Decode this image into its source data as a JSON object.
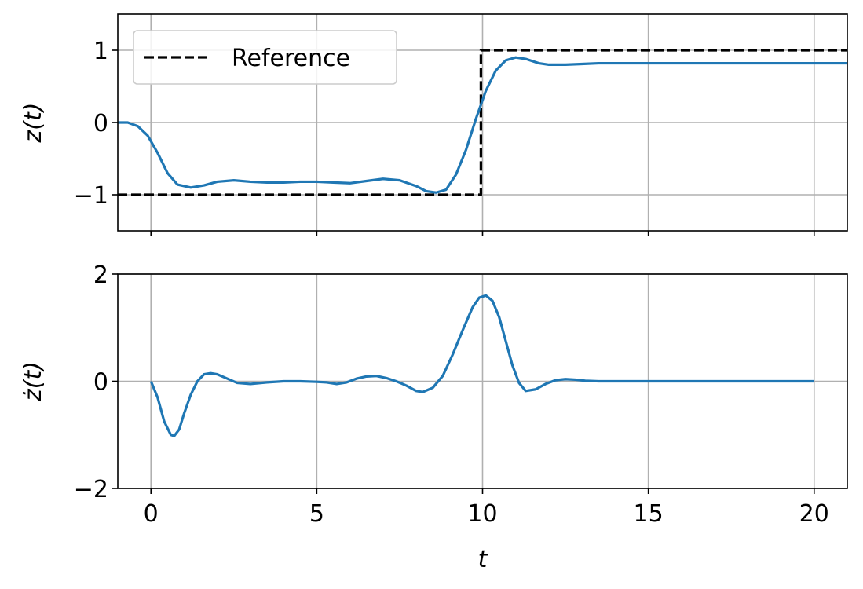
{
  "colors": {
    "series": "#1f77b4",
    "reference": "#000000",
    "grid": "#b0b0b0",
    "axis": "#000000",
    "legend_border": "#cccccc"
  },
  "chart_data": [
    {
      "type": "line",
      "xlim": [
        -1,
        21
      ],
      "ylim": [
        -1.5,
        1.5
      ],
      "yticks": [
        -1,
        0,
        1
      ],
      "ytick_labels": [
        "−1",
        "0",
        "1"
      ],
      "xticks": [
        0,
        5,
        10,
        15,
        20
      ],
      "show_xtick_labels": false,
      "ylabel": "z(t)",
      "xlabel": "",
      "grid": true,
      "legend": {
        "placement": "top-left",
        "entries": [
          "Reference"
        ]
      },
      "series": [
        {
          "name": "Reference",
          "style": "dashed",
          "color": "#000000",
          "x": [
            -1,
            9.95,
            9.95,
            21
          ],
          "y": [
            -1,
            -1,
            1,
            1
          ]
        },
        {
          "style": "solid",
          "color": "#1f77b4",
          "x": [
            -1,
            -0.7,
            -0.4,
            -0.1,
            0.2,
            0.5,
            0.8,
            1.2,
            1.6,
            2.0,
            2.5,
            3.0,
            3.5,
            4.0,
            4.5,
            5.0,
            5.5,
            6.0,
            6.5,
            7.0,
            7.5,
            8.0,
            8.3,
            8.6,
            8.9,
            9.2,
            9.5,
            9.8,
            10.1,
            10.4,
            10.7,
            11.0,
            11.3,
            11.7,
            12.0,
            12.5,
            13.0,
            13.5,
            14.0,
            15.0,
            16.0,
            17.0,
            18.0,
            19.0,
            20.0,
            21.0
          ],
          "y": [
            0.0,
            0.0,
            -0.05,
            -0.18,
            -0.42,
            -0.7,
            -0.86,
            -0.9,
            -0.87,
            -0.82,
            -0.8,
            -0.82,
            -0.83,
            -0.83,
            -0.82,
            -0.82,
            -0.83,
            -0.84,
            -0.81,
            -0.78,
            -0.8,
            -0.88,
            -0.95,
            -0.97,
            -0.93,
            -0.72,
            -0.38,
            0.05,
            0.44,
            0.72,
            0.86,
            0.9,
            0.88,
            0.82,
            0.8,
            0.8,
            0.81,
            0.82,
            0.82,
            0.82,
            0.82,
            0.82,
            0.82,
            0.82,
            0.82,
            0.82
          ]
        }
      ]
    },
    {
      "type": "line",
      "xlim": [
        -1,
        21
      ],
      "ylim": [
        -2,
        2
      ],
      "yticks": [
        -2,
        0,
        2
      ],
      "ytick_labels": [
        "−2",
        "0",
        "2"
      ],
      "xticks": [
        0,
        5,
        10,
        15,
        20
      ],
      "xtick_labels": [
        "0",
        "5",
        "10",
        "15",
        "20"
      ],
      "ylabel": "ż(t)",
      "xlabel": "t",
      "grid": true,
      "series": [
        {
          "style": "solid",
          "color": "#1f77b4",
          "x": [
            0.0,
            0.2,
            0.4,
            0.6,
            0.7,
            0.85,
            1.0,
            1.2,
            1.4,
            1.6,
            1.8,
            2.0,
            2.3,
            2.6,
            3.0,
            3.5,
            4.0,
            4.5,
            5.0,
            5.3,
            5.6,
            5.9,
            6.2,
            6.5,
            6.8,
            7.1,
            7.4,
            7.7,
            8.0,
            8.2,
            8.5,
            8.8,
            9.1,
            9.4,
            9.7,
            9.9,
            10.1,
            10.3,
            10.5,
            10.7,
            10.9,
            11.1,
            11.3,
            11.6,
            11.9,
            12.2,
            12.5,
            12.8,
            13.1,
            13.5,
            14.0,
            15.0,
            16.0,
            17.0,
            18.0,
            19.0,
            20.0
          ],
          "y": [
            0.0,
            -0.3,
            -0.75,
            -1.0,
            -1.02,
            -0.9,
            -0.6,
            -0.25,
            0.0,
            0.13,
            0.15,
            0.13,
            0.05,
            -0.03,
            -0.05,
            -0.02,
            0.0,
            0.0,
            -0.01,
            -0.02,
            -0.05,
            -0.02,
            0.05,
            0.09,
            0.1,
            0.06,
            0.0,
            -0.08,
            -0.18,
            -0.2,
            -0.12,
            0.1,
            0.5,
            0.95,
            1.38,
            1.56,
            1.6,
            1.5,
            1.2,
            0.75,
            0.3,
            -0.03,
            -0.18,
            -0.15,
            -0.05,
            0.02,
            0.04,
            0.03,
            0.01,
            0.0,
            0.0,
            0.0,
            0.0,
            0.0,
            0.0,
            0.0,
            0.0
          ]
        }
      ]
    }
  ]
}
